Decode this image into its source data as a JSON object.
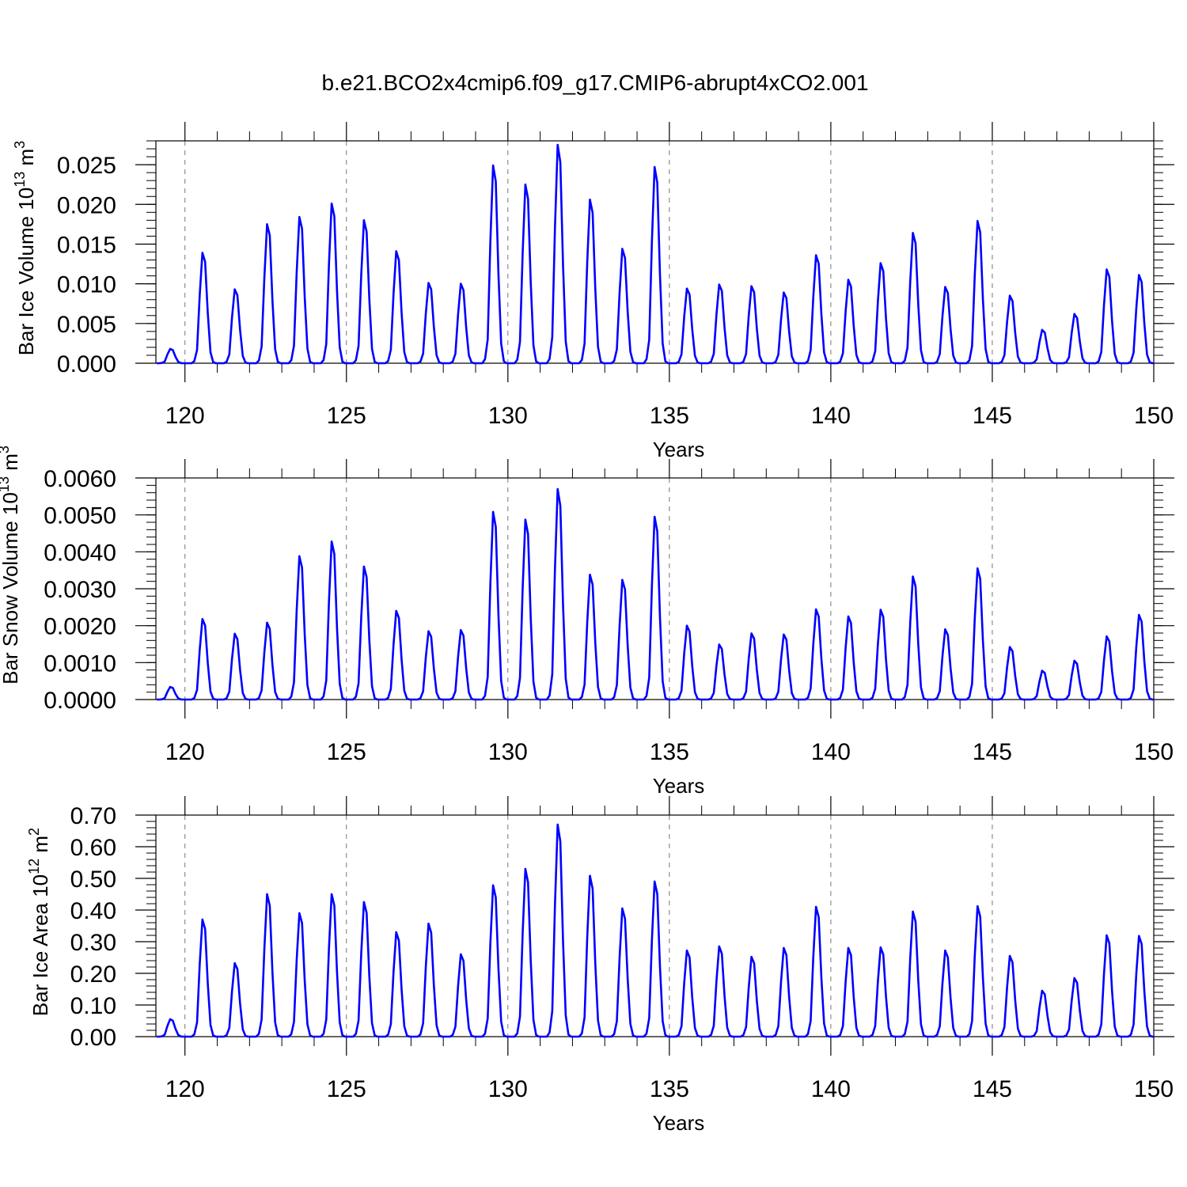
{
  "title": "b.e21.BCO2x4cmip6.f09_g17.CMIP6-abrupt4xCO2.001",
  "colors": {
    "series": "#0000ff",
    "axis": "#000000",
    "grid": "#777777"
  },
  "chart_data": [
    {
      "type": "line",
      "title": "b.e21.BCO2x4cmip6.f09_g17.CMIP6-abrupt4xCO2.001",
      "ylabel": "Bar Ice Volume 10",
      "ylabel_sup": "13",
      "ylabel_unit": "m",
      "ylabel_unit_sup": "3",
      "xlabel": "Years",
      "xlim": [
        119.1,
        150.0
      ],
      "ylim": [
        0,
        0.028
      ],
      "x_ticks": [
        120,
        125,
        130,
        135,
        140,
        145,
        150
      ],
      "x_tick_labels": [
        "120",
        "125",
        "130",
        "135",
        "140",
        "145",
        "150"
      ],
      "y_ticks": [
        0,
        0.005,
        0.01,
        0.015,
        0.02,
        0.025
      ],
      "y_tick_labels": [
        "0.000",
        "0.005",
        "0.010",
        "0.015",
        "0.020",
        "0.025"
      ],
      "y_minor_step": 0.001,
      "grid": "vertical dashed at major x ticks",
      "start_year": 119,
      "series": [
        {
          "name": "Bar Ice Volume",
          "annual_peaks": [
            {
              "year": 119,
              "peak": 0.0018
            },
            {
              "year": 120,
              "peak": 0.0139
            },
            {
              "year": 121,
              "peak": 0.0093
            },
            {
              "year": 122,
              "peak": 0.0175
            },
            {
              "year": 123,
              "peak": 0.0184
            },
            {
              "year": 124,
              "peak": 0.0201
            },
            {
              "year": 125,
              "peak": 0.018
            },
            {
              "year": 126,
              "peak": 0.0141
            },
            {
              "year": 127,
              "peak": 0.0101
            },
            {
              "year": 128,
              "peak": 0.01
            },
            {
              "year": 129,
              "peak": 0.0249
            },
            {
              "year": 130,
              "peak": 0.0225
            },
            {
              "year": 131,
              "peak": 0.0275
            },
            {
              "year": 132,
              "peak": 0.0206
            },
            {
              "year": 133,
              "peak": 0.0144
            },
            {
              "year": 134,
              "peak": 0.0247
            },
            {
              "year": 135,
              "peak": 0.0094
            },
            {
              "year": 136,
              "peak": 0.0099
            },
            {
              "year": 137,
              "peak": 0.0097
            },
            {
              "year": 138,
              "peak": 0.0089
            },
            {
              "year": 139,
              "peak": 0.0136
            },
            {
              "year": 140,
              "peak": 0.0105
            },
            {
              "year": 141,
              "peak": 0.0126
            },
            {
              "year": 142,
              "peak": 0.0164
            },
            {
              "year": 143,
              "peak": 0.0096
            },
            {
              "year": 144,
              "peak": 0.0179
            },
            {
              "year": 145,
              "peak": 0.0085
            },
            {
              "year": 146,
              "peak": 0.0042
            },
            {
              "year": 147,
              "peak": 0.0062
            },
            {
              "year": 148,
              "peak": 0.0118
            },
            {
              "year": 149,
              "peak": 0.0111
            }
          ]
        }
      ]
    },
    {
      "type": "line",
      "ylabel": "Bar Snow Volume 10",
      "ylabel_sup": "13",
      "ylabel_unit": "m",
      "ylabel_unit_sup": "3",
      "xlabel": "Years",
      "xlim": [
        119.1,
        150.0
      ],
      "ylim": [
        0,
        0.006
      ],
      "x_ticks": [
        120,
        125,
        130,
        135,
        140,
        145,
        150
      ],
      "x_tick_labels": [
        "120",
        "125",
        "130",
        "135",
        "140",
        "145",
        "150"
      ],
      "y_ticks": [
        0,
        0.001,
        0.002,
        0.003,
        0.004,
        0.005,
        0.006
      ],
      "y_tick_labels": [
        "0.0000",
        "0.0010",
        "0.0020",
        "0.0030",
        "0.0040",
        "0.0050",
        "0.0060"
      ],
      "y_minor_step": 0.0002,
      "grid": "vertical dashed at major x ticks",
      "start_year": 119,
      "series": [
        {
          "name": "Bar Snow Volume",
          "annual_peaks": [
            {
              "year": 119,
              "peak": 0.00034
            },
            {
              "year": 120,
              "peak": 0.00218
            },
            {
              "year": 121,
              "peak": 0.00178
            },
            {
              "year": 122,
              "peak": 0.00208
            },
            {
              "year": 123,
              "peak": 0.00388
            },
            {
              "year": 124,
              "peak": 0.00428
            },
            {
              "year": 125,
              "peak": 0.0036
            },
            {
              "year": 126,
              "peak": 0.0024
            },
            {
              "year": 127,
              "peak": 0.00185
            },
            {
              "year": 128,
              "peak": 0.00188
            },
            {
              "year": 129,
              "peak": 0.00508
            },
            {
              "year": 130,
              "peak": 0.00487
            },
            {
              "year": 131,
              "peak": 0.0057
            },
            {
              "year": 132,
              "peak": 0.00338
            },
            {
              "year": 133,
              "peak": 0.00324
            },
            {
              "year": 134,
              "peak": 0.00495
            },
            {
              "year": 135,
              "peak": 0.002
            },
            {
              "year": 136,
              "peak": 0.00149
            },
            {
              "year": 137,
              "peak": 0.00179
            },
            {
              "year": 138,
              "peak": 0.00176
            },
            {
              "year": 139,
              "peak": 0.00244
            },
            {
              "year": 140,
              "peak": 0.00225
            },
            {
              "year": 141,
              "peak": 0.00243
            },
            {
              "year": 142,
              "peak": 0.00333
            },
            {
              "year": 143,
              "peak": 0.0019
            },
            {
              "year": 144,
              "peak": 0.00355
            },
            {
              "year": 145,
              "peak": 0.00142
            },
            {
              "year": 146,
              "peak": 0.00078
            },
            {
              "year": 147,
              "peak": 0.00105
            },
            {
              "year": 148,
              "peak": 0.00171
            },
            {
              "year": 149,
              "peak": 0.00229
            }
          ]
        }
      ]
    },
    {
      "type": "line",
      "ylabel": "Bar Ice Area 10",
      "ylabel_sup": "12",
      "ylabel_unit": "m",
      "ylabel_unit_sup": "2",
      "xlabel": "Years",
      "xlim": [
        119.1,
        150.0
      ],
      "ylim": [
        0,
        0.7
      ],
      "x_ticks": [
        120,
        125,
        130,
        135,
        140,
        145,
        150
      ],
      "x_tick_labels": [
        "120",
        "125",
        "130",
        "135",
        "140",
        "145",
        "150"
      ],
      "y_ticks": [
        0,
        0.1,
        0.2,
        0.3,
        0.4,
        0.5,
        0.6,
        0.7
      ],
      "y_tick_labels": [
        "0.00",
        "0.10",
        "0.20",
        "0.30",
        "0.40",
        "0.50",
        "0.60",
        "0.70"
      ],
      "y_minor_step": 0.02,
      "grid": "vertical dashed at major x ticks",
      "start_year": 119,
      "series": [
        {
          "name": "Bar Ice Area",
          "annual_peaks": [
            {
              "year": 119,
              "peak": 0.055
            },
            {
              "year": 120,
              "peak": 0.37
            },
            {
              "year": 121,
              "peak": 0.232
            },
            {
              "year": 122,
              "peak": 0.45
            },
            {
              "year": 123,
              "peak": 0.39
            },
            {
              "year": 124,
              "peak": 0.45
            },
            {
              "year": 125,
              "peak": 0.425
            },
            {
              "year": 126,
              "peak": 0.33
            },
            {
              "year": 127,
              "peak": 0.357
            },
            {
              "year": 128,
              "peak": 0.26
            },
            {
              "year": 129,
              "peak": 0.478
            },
            {
              "year": 130,
              "peak": 0.53
            },
            {
              "year": 131,
              "peak": 0.67
            },
            {
              "year": 132,
              "peak": 0.508
            },
            {
              "year": 133,
              "peak": 0.405
            },
            {
              "year": 134,
              "peak": 0.49
            },
            {
              "year": 135,
              "peak": 0.272
            },
            {
              "year": 136,
              "peak": 0.285
            },
            {
              "year": 137,
              "peak": 0.252
            },
            {
              "year": 138,
              "peak": 0.28
            },
            {
              "year": 139,
              "peak": 0.41
            },
            {
              "year": 140,
              "peak": 0.28
            },
            {
              "year": 141,
              "peak": 0.282
            },
            {
              "year": 142,
              "peak": 0.395
            },
            {
              "year": 143,
              "peak": 0.272
            },
            {
              "year": 144,
              "peak": 0.412
            },
            {
              "year": 145,
              "peak": 0.255
            },
            {
              "year": 146,
              "peak": 0.145
            },
            {
              "year": 147,
              "peak": 0.185
            },
            {
              "year": 148,
              "peak": 0.32
            },
            {
              "year": 149,
              "peak": 0.318
            }
          ]
        }
      ]
    }
  ]
}
